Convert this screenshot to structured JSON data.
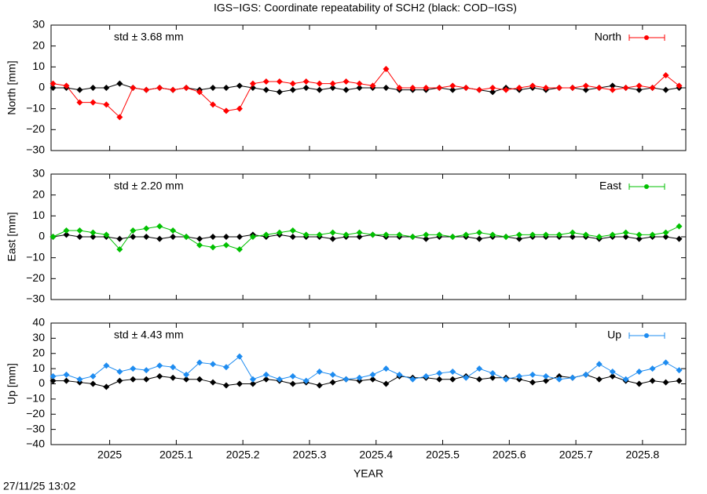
{
  "title": "IGS−IGS: Coordinate repeatability of SCH2 (black: COD−IGS)",
  "timestamp": "27/11/25 13:02",
  "chart_data": [
    {
      "type": "line",
      "ylabel": "North [mm]",
      "annotation": "std ± 3.68 mm",
      "legend": "upper right",
      "xlim": [
        2024.912,
        2025.865
      ],
      "xticks": [
        2025,
        2025.1,
        2025.2,
        2025.3,
        2025.4,
        2025.5,
        2025.6,
        2025.7,
        2025.8
      ],
      "ylim": [
        -30,
        30
      ],
      "yticks": [
        {
          "value": -30,
          "label": "−30"
        },
        {
          "value": -20,
          "label": "−20"
        },
        {
          "value": -10,
          "label": "−10"
        },
        0,
        10,
        20,
        30
      ],
      "x": [
        2024.915,
        2024.935,
        2024.955,
        2024.975,
        2024.995,
        2025.015,
        2025.035,
        2025.055,
        2025.075,
        2025.095,
        2025.115,
        2025.135,
        2025.155,
        2025.175,
        2025.195,
        2025.215,
        2025.235,
        2025.255,
        2025.275,
        2025.295,
        2025.315,
        2025.335,
        2025.355,
        2025.375,
        2025.395,
        2025.415,
        2025.435,
        2025.455,
        2025.475,
        2025.495,
        2025.515,
        2025.535,
        2025.555,
        2025.575,
        2025.595,
        2025.615,
        2025.635,
        2025.655,
        2025.675,
        2025.695,
        2025.715,
        2025.735,
        2025.755,
        2025.775,
        2025.795,
        2025.815,
        2025.835,
        2025.855
      ],
      "series": [
        {
          "color": "#000000",
          "values": [
            0,
            0,
            -1,
            0,
            0,
            2,
            0,
            -1,
            0,
            -1,
            0,
            -1,
            0,
            0,
            1,
            0,
            -1,
            -2,
            -1,
            0,
            -1,
            0,
            -1,
            0,
            0,
            0,
            -1,
            -1,
            -1,
            0,
            -1,
            0,
            -1,
            -2,
            0,
            -1,
            0,
            -1,
            0,
            0,
            -1,
            0,
            1,
            0,
            -1,
            0,
            -1,
            0
          ]
        },
        {
          "name": "North",
          "color": "#ff0000",
          "values": [
            2,
            1,
            -7,
            -7,
            -8,
            -14,
            0,
            -1,
            0,
            -1,
            0,
            -2,
            -8,
            -11,
            -10,
            2,
            3,
            3,
            2,
            3,
            2,
            2,
            3,
            2,
            1,
            9,
            0,
            0,
            0,
            0,
            1,
            0,
            -1,
            0,
            -1,
            0,
            1,
            0,
            0,
            0,
            1,
            0,
            -1,
            0,
            1,
            0,
            6,
            1
          ]
        }
      ]
    },
    {
      "type": "line",
      "ylabel": "East [mm]",
      "annotation": "std ± 2.20 mm",
      "legend": "upper right",
      "xlim": [
        2024.912,
        2025.865
      ],
      "xticks": [
        2025,
        2025.1,
        2025.2,
        2025.3,
        2025.4,
        2025.5,
        2025.6,
        2025.7,
        2025.8
      ],
      "ylim": [
        -30,
        30
      ],
      "yticks": [
        {
          "value": -30,
          "label": "−30"
        },
        {
          "value": -20,
          "label": "−20"
        },
        {
          "value": -10,
          "label": "−10"
        },
        0,
        10,
        20,
        30
      ],
      "x": [
        2024.915,
        2024.935,
        2024.955,
        2024.975,
        2024.995,
        2025.015,
        2025.035,
        2025.055,
        2025.075,
        2025.095,
        2025.115,
        2025.135,
        2025.155,
        2025.175,
        2025.195,
        2025.215,
        2025.235,
        2025.255,
        2025.275,
        2025.295,
        2025.315,
        2025.335,
        2025.355,
        2025.375,
        2025.395,
        2025.415,
        2025.435,
        2025.455,
        2025.475,
        2025.495,
        2025.515,
        2025.535,
        2025.555,
        2025.575,
        2025.595,
        2025.615,
        2025.635,
        2025.655,
        2025.675,
        2025.695,
        2025.715,
        2025.735,
        2025.755,
        2025.775,
        2025.795,
        2025.815,
        2025.835,
        2025.855
      ],
      "series": [
        {
          "color": "#000000",
          "values": [
            0,
            1,
            0,
            0,
            0,
            -1,
            0,
            0,
            -1,
            0,
            0,
            -1,
            0,
            0,
            0,
            1,
            0,
            1,
            0,
            0,
            0,
            -1,
            0,
            0,
            1,
            0,
            0,
            0,
            -1,
            0,
            0,
            0,
            -1,
            0,
            0,
            -1,
            0,
            0,
            0,
            0,
            0,
            -1,
            0,
            0,
            -1,
            0,
            0,
            -1
          ]
        },
        {
          "name": "East",
          "color": "#00c000",
          "values": [
            0,
            3,
            3,
            2,
            1,
            -6,
            3,
            4,
            5,
            3,
            0,
            -4,
            -5,
            -4,
            -6,
            0,
            1,
            2,
            3,
            1,
            1,
            2,
            1,
            2,
            1,
            1,
            1,
            0,
            1,
            1,
            0,
            1,
            2,
            1,
            0,
            1,
            1,
            1,
            1,
            2,
            1,
            0,
            1,
            2,
            1,
            1,
            2,
            5
          ]
        }
      ]
    },
    {
      "type": "line",
      "ylabel": "Up [mm]",
      "xlabel": "YEAR",
      "annotation": "std ± 4.43 mm",
      "legend": "upper right",
      "xlim": [
        2024.912,
        2025.865
      ],
      "xticks": [
        2025,
        2025.1,
        2025.2,
        2025.3,
        2025.4,
        2025.5,
        2025.6,
        2025.7,
        2025.8
      ],
      "ylim": [
        -40,
        40
      ],
      "yticks": [
        {
          "value": -40,
          "label": "−40"
        },
        {
          "value": -30,
          "label": "−30"
        },
        {
          "value": -20,
          "label": "−20"
        },
        {
          "value": -10,
          "label": "−10"
        },
        0,
        10,
        20,
        30,
        40
      ],
      "x": [
        2024.915,
        2024.935,
        2024.955,
        2024.975,
        2024.995,
        2025.015,
        2025.035,
        2025.055,
        2025.075,
        2025.095,
        2025.115,
        2025.135,
        2025.155,
        2025.175,
        2025.195,
        2025.215,
        2025.235,
        2025.255,
        2025.275,
        2025.295,
        2025.315,
        2025.335,
        2025.355,
        2025.375,
        2025.395,
        2025.415,
        2025.435,
        2025.455,
        2025.475,
        2025.495,
        2025.515,
        2025.535,
        2025.555,
        2025.575,
        2025.595,
        2025.615,
        2025.635,
        2025.655,
        2025.675,
        2025.695,
        2025.715,
        2025.735,
        2025.755,
        2025.775,
        2025.795,
        2025.815,
        2025.835,
        2025.855
      ],
      "series": [
        {
          "color": "#000000",
          "values": [
            2,
            2,
            1,
            0,
            -2,
            2,
            3,
            3,
            5,
            4,
            3,
            3,
            1,
            -1,
            0,
            0,
            3,
            2,
            0,
            1,
            -1,
            1,
            3,
            2,
            3,
            0,
            5,
            4,
            4,
            3,
            3,
            5,
            3,
            4,
            4,
            3,
            1,
            2,
            5,
            4,
            6,
            3,
            5,
            2,
            0,
            2,
            1,
            2
          ]
        },
        {
          "name": "Up",
          "color": "#1e8cf0",
          "values": [
            5,
            6,
            3,
            5,
            12,
            8,
            10,
            9,
            12,
            11,
            6,
            14,
            13,
            11,
            18,
            3,
            6,
            3,
            5,
            2,
            8,
            6,
            3,
            4,
            6,
            10,
            6,
            3,
            5,
            7,
            8,
            4,
            10,
            7,
            3,
            5,
            6,
            5,
            3,
            4,
            6,
            13,
            8,
            3,
            8,
            10,
            14,
            9
          ]
        }
      ]
    }
  ]
}
